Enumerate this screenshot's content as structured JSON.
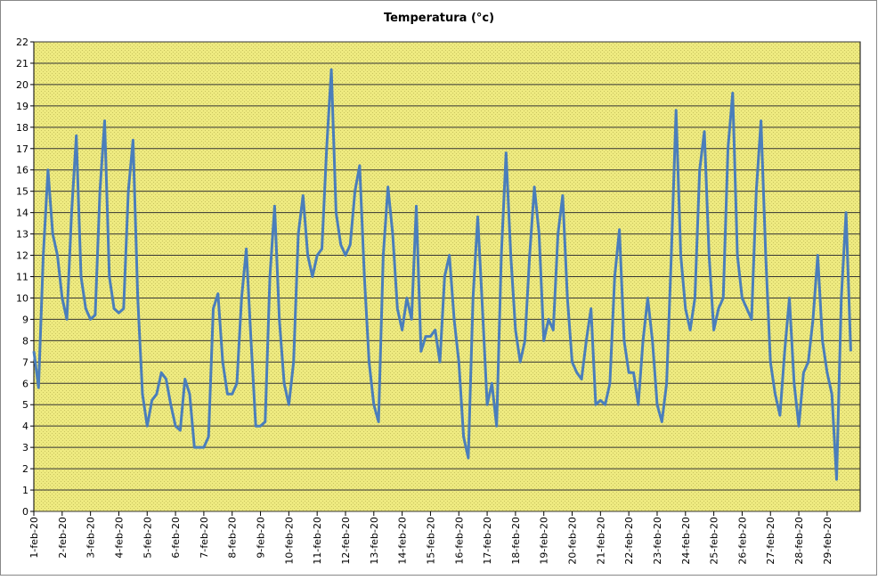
{
  "chart_data": {
    "type": "line",
    "title": "Temperatura (°c)",
    "categories": [
      "1-feb-20",
      null,
      null,
      null,
      null,
      null,
      "2-feb-20",
      null,
      null,
      null,
      null,
      null,
      "3-feb-20",
      null,
      null,
      null,
      null,
      null,
      "4-feb-20",
      null,
      null,
      null,
      null,
      null,
      "5-feb-20",
      null,
      null,
      null,
      null,
      null,
      "6-feb-20",
      null,
      null,
      null,
      null,
      null,
      "7-feb-20",
      null,
      null,
      null,
      null,
      null,
      "8-feb-20",
      null,
      null,
      null,
      null,
      null,
      "9-feb-20",
      null,
      null,
      null,
      null,
      null,
      "10-feb-20",
      null,
      null,
      null,
      null,
      null,
      "11-feb-20",
      null,
      null,
      null,
      null,
      null,
      "12-feb-20",
      null,
      null,
      null,
      null,
      null,
      "13-feb-20",
      null,
      null,
      null,
      null,
      null,
      "14-feb-20",
      null,
      null,
      null,
      null,
      null,
      "15-feb-20",
      null,
      null,
      null,
      null,
      null,
      "16-feb-20",
      null,
      null,
      null,
      null,
      null,
      "17-feb-20",
      null,
      null,
      null,
      null,
      null,
      "18-feb-20",
      null,
      null,
      null,
      null,
      null,
      "19-feb-20",
      null,
      null,
      null,
      null,
      null,
      "20-feb-20",
      null,
      null,
      null,
      null,
      null,
      "21-feb-20",
      null,
      null,
      null,
      null,
      null,
      "22-feb-20",
      null,
      null,
      null,
      null,
      null,
      "23-feb-20",
      null,
      null,
      null,
      null,
      null,
      "24-feb-20",
      null,
      null,
      null,
      null,
      null,
      "25-feb-20",
      null,
      null,
      null,
      null,
      null,
      "26-feb-20",
      null,
      null,
      null,
      null,
      null,
      "27-feb-20",
      null,
      null,
      null,
      null,
      null,
      "28-feb-20",
      null,
      null,
      null,
      null,
      null,
      "29-feb-20",
      null,
      null,
      null,
      null,
      null
    ],
    "series": [
      {
        "name": "Temperatura",
        "color": "#4a7ebb",
        "values": [
          7.5,
          5.8,
          12,
          16,
          13,
          12,
          10,
          9,
          14,
          17.6,
          11,
          9.5,
          9,
          9.2,
          15,
          18.3,
          11,
          9.5,
          9.3,
          9.5,
          15,
          17.4,
          10,
          5.5,
          4,
          5.2,
          5.5,
          6.5,
          6.2,
          5,
          4,
          3.8,
          6.2,
          5.5,
          3,
          3,
          3,
          3.5,
          9.5,
          10.2,
          7,
          5.5,
          5.5,
          6,
          10,
          12.3,
          8,
          4,
          4,
          4.2,
          11,
          14.3,
          9,
          6,
          5,
          7,
          13,
          14.8,
          12,
          11,
          12,
          12.3,
          17,
          20.7,
          14,
          12.5,
          12,
          12.5,
          15,
          16.2,
          11,
          7,
          5,
          4.2,
          12,
          15.2,
          13,
          9.5,
          8.5,
          10,
          9,
          14.3,
          7.5,
          8.2,
          8.2,
          8.5,
          7,
          11,
          12,
          9,
          7,
          3.5,
          2.5,
          10,
          13.8,
          9.5,
          5,
          6,
          4,
          12,
          16.8,
          12,
          8.5,
          7,
          8,
          12,
          15.2,
          13,
          8,
          9,
          8.5,
          13,
          14.8,
          10,
          7,
          6.5,
          6.2,
          8,
          9.5,
          5,
          5.2,
          5,
          6,
          11,
          13.2,
          8,
          6.5,
          6.5,
          5,
          8,
          10,
          8,
          5,
          4.2,
          6,
          12,
          18.8,
          12,
          9.5,
          8.5,
          10,
          16,
          17.8,
          12,
          8.5,
          9.5,
          10,
          17,
          19.6,
          12,
          10,
          9.5,
          9,
          15,
          18.3,
          12,
          7,
          5.5,
          4.5,
          7.5,
          10,
          6,
          4,
          6.5,
          7,
          9,
          12,
          8,
          6.5,
          5.5,
          1.5,
          10,
          14,
          7.5
        ]
      }
    ],
    "ylim": [
      0,
      22
    ],
    "yticks": [
      0,
      1,
      2,
      3,
      4,
      5,
      6,
      7,
      8,
      9,
      10,
      11,
      12,
      13,
      14,
      15,
      16,
      17,
      18,
      19,
      20,
      21,
      22
    ],
    "grid": true
  }
}
